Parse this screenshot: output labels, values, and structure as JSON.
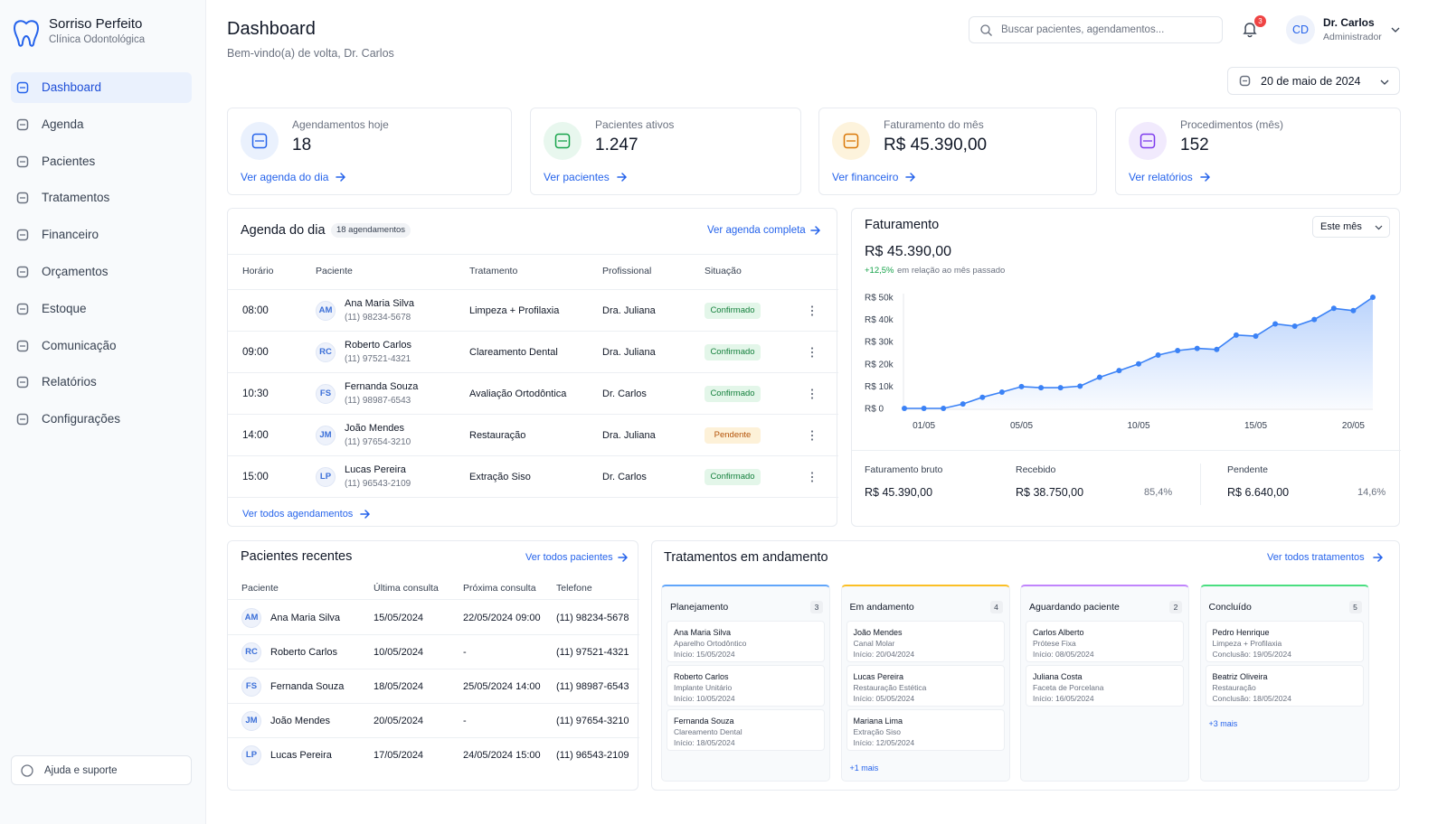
{
  "sidebar": {
    "brand": {
      "name": "Sorriso Perfeito",
      "tagline": "Clínica Odontológica"
    },
    "menu": [
      "Dashboard",
      "Agenda",
      "Pacientes",
      "Tratamentos",
      "Financeiro",
      "Orçamentos",
      "Estoque",
      "Comunicação",
      "Relatórios",
      "Configurações"
    ],
    "help": "Ajuda e suporte"
  },
  "header": {
    "title": "Dashboard",
    "subtitle": "Bem-vindo(a) de volta, Dr. Carlos",
    "search_placeholder": "Buscar pacientes, agendamentos...",
    "notifications": "3",
    "user": {
      "initials": "CD",
      "name": "Dr. Carlos",
      "role": "Administrador"
    },
    "date": "20 de maio de 2024"
  },
  "stats": [
    {
      "label": "Agendamentos hoje",
      "value": "18",
      "link": "Ver agenda do dia",
      "color": "#2563eb",
      "bg": "#eaf1fd"
    },
    {
      "label": "Pacientes ativos",
      "value": "1.247",
      "link": "Ver pacientes",
      "color": "#16a34a",
      "bg": "#e8f7ee"
    },
    {
      "label": "Faturamento do mês",
      "value": "R$ 45.390,00",
      "link": "Ver financeiro",
      "color": "#d97706",
      "bg": "#fdf3dc"
    },
    {
      "label": "Procedimentos (mês)",
      "value": "152",
      "link": "Ver relatórios",
      "color": "#7c3aed",
      "bg": "#f1eafd"
    }
  ],
  "agenda": {
    "title": "Agenda do dia",
    "badge": "18 agendamentos",
    "link": "Ver agenda completa",
    "columns": [
      "Horário",
      "Paciente",
      "Tratamento",
      "Profissional",
      "Situação"
    ],
    "rows": [
      {
        "time": "08:00",
        "initials": "AM",
        "name": "Ana Maria Silva",
        "phone": "(11) 98234-5678",
        "treatment": "Limpeza + Profilaxia",
        "professional": "Dra. Juliana",
        "status": "Confirmado",
        "status_color": "#15803d",
        "status_bg": "#e3f6e9"
      },
      {
        "time": "09:00",
        "initials": "RC",
        "name": "Roberto Carlos",
        "phone": "(11) 97521-4321",
        "treatment": "Clareamento Dental",
        "professional": "Dra. Juliana",
        "status": "Confirmado",
        "status_color": "#15803d",
        "status_bg": "#e3f6e9"
      },
      {
        "time": "10:30",
        "initials": "FS",
        "name": "Fernanda Souza",
        "phone": "(11) 98987-6543",
        "treatment": "Avaliação Ortodôntica",
        "professional": "Dr. Carlos",
        "status": "Confirmado",
        "status_color": "#15803d",
        "status_bg": "#e3f6e9"
      },
      {
        "time": "14:00",
        "initials": "JM",
        "name": "João Mendes",
        "phone": "(11) 97654-3210",
        "treatment": "Restauração",
        "professional": "Dra. Juliana",
        "status": "Pendente",
        "status_color": "#b45309",
        "status_bg": "#fdf1d8"
      },
      {
        "time": "15:00",
        "initials": "LP",
        "name": "Lucas Pereira",
        "phone": "(11) 96543-2109",
        "treatment": "Extração Siso",
        "professional": "Dr. Carlos",
        "status": "Confirmado",
        "status_color": "#15803d",
        "status_bg": "#e3f6e9"
      }
    ],
    "footer": "Ver todos agendamentos"
  },
  "revenue": {
    "title": "Faturamento",
    "period": "Este mês",
    "total": "R$ 45.390,00",
    "change": "+12,5%",
    "change_text": "em relação ao mês passado",
    "summary": [
      {
        "label": "Faturamento bruto",
        "value": "R$ 45.390,00"
      },
      {
        "label": "Recebido",
        "value": "R$ 38.750,00",
        "pct": "85,4%"
      },
      {
        "label": "Pendente",
        "value": "R$ 6.640,00",
        "pct": "14,6%"
      }
    ]
  },
  "chart_data": {
    "type": "line",
    "categories": [
      null,
      "01/05",
      null,
      null,
      null,
      null,
      "05/05",
      null,
      null,
      null,
      null,
      null,
      "10/05",
      null,
      null,
      null,
      null,
      null,
      "15/05",
      null,
      null,
      null,
      null,
      "20/05",
      null
    ],
    "values": [
      0,
      0,
      0,
      2000,
      5000,
      7300,
      9800,
      9300,
      9300,
      10000,
      14000,
      17000,
      20000,
      24000,
      26000,
      27000,
      26500,
      33000,
      32500,
      38000,
      37000,
      40000,
      45000,
      44000,
      50000
    ],
    "color": "#3b82f6",
    "ylim": [
      0,
      50000
    ],
    "yticks": [
      {
        "value": 0,
        "label": "R$ 0"
      },
      {
        "value": 10000,
        "label": "R$ 10k"
      },
      {
        "value": 20000,
        "label": "R$ 20k"
      },
      {
        "value": 30000,
        "label": "R$ 30k"
      },
      {
        "value": 40000,
        "label": "R$ 40k"
      },
      {
        "value": 50000,
        "label": "R$ 50k"
      }
    ],
    "grid": false
  },
  "recent": {
    "title": "Pacientes recentes",
    "link": "Ver todos pacientes",
    "columns": [
      "Paciente",
      "Última consulta",
      "Próxima consulta",
      "Telefone"
    ],
    "rows": [
      {
        "initials": "AM",
        "name": "Ana Maria Silva",
        "last": "15/05/2024",
        "next": "22/05/2024 09:00",
        "phone": "(11) 98234-5678"
      },
      {
        "initials": "RC",
        "name": "Roberto Carlos",
        "last": "10/05/2024",
        "next": "-",
        "phone": "(11) 97521-4321"
      },
      {
        "initials": "FS",
        "name": "Fernanda Souza",
        "last": "18/05/2024",
        "next": "25/05/2024 14:00",
        "phone": "(11) 98987-6543"
      },
      {
        "initials": "JM",
        "name": "João Mendes",
        "last": "20/05/2024",
        "next": "-",
        "phone": "(11) 97654-3210"
      },
      {
        "initials": "LP",
        "name": "Lucas Pereira",
        "last": "17/05/2024",
        "next": "24/05/2024 15:00",
        "phone": "(11) 96543-2109"
      }
    ]
  },
  "treatments": {
    "title": "Tratamentos em andamento",
    "link": "Ver todos tratamentos",
    "columns": [
      {
        "title": "Planejamento",
        "count": "3",
        "color": "#60a5fa",
        "items": [
          {
            "name": "Ana Maria Silva",
            "detail": "Aparelho Ortodôntico",
            "date": "Início: 15/05/2024"
          },
          {
            "name": "Roberto Carlos",
            "detail": "Implante Unitário",
            "date": "Início: 10/05/2024"
          },
          {
            "name": "Fernanda Souza",
            "detail": "Clareamento Dental",
            "date": "Início: 18/05/2024"
          }
        ]
      },
      {
        "title": "Em andamento",
        "count": "4",
        "color": "#fbbf24",
        "items": [
          {
            "name": "João Mendes",
            "detail": "Canal Molar",
            "date": "Início: 20/04/2024"
          },
          {
            "name": "Lucas Pereira",
            "detail": "Restauração Estética",
            "date": "Início: 05/05/2024"
          },
          {
            "name": "Mariana Lima",
            "detail": "Extração Siso",
            "date": "Início: 12/05/2024"
          }
        ],
        "more": "+1 mais"
      },
      {
        "title": "Aguardando paciente",
        "count": "2",
        "color": "#c084fc",
        "items": [
          {
            "name": "Carlos Alberto",
            "detail": "Prótese Fixa",
            "date": "Início: 08/05/2024"
          },
          {
            "name": "Juliana Costa",
            "detail": "Faceta de Porcelana",
            "date": "Início: 16/05/2024"
          }
        ]
      },
      {
        "title": "Concluído",
        "count": "5",
        "color": "#4ade80",
        "items": [
          {
            "name": "Pedro Henrique",
            "detail": "Limpeza + Profilaxia",
            "date": "Conclusão: 19/05/2024"
          },
          {
            "name": "Beatriz Oliveira",
            "detail": "Restauração",
            "date": "Conclusão: 18/05/2024"
          }
        ],
        "more": "+3 mais"
      }
    ]
  }
}
